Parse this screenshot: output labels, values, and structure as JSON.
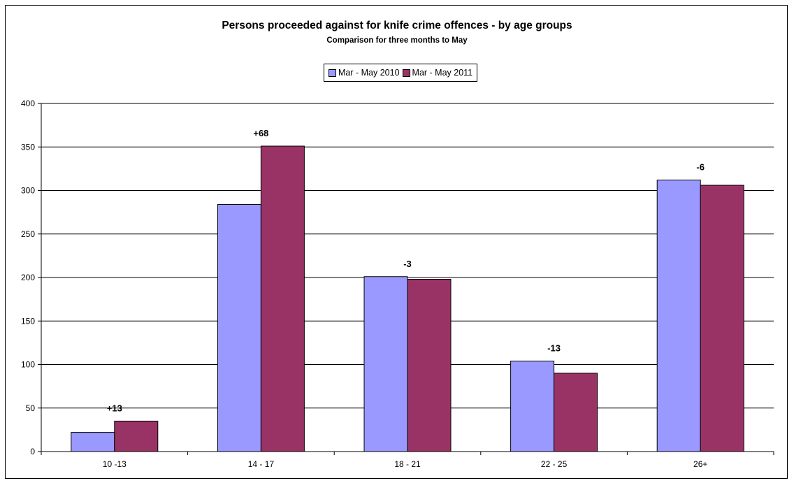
{
  "chart_data": {
    "type": "bar",
    "title": "Persons proceeded against for knife crime offences  - by age groups",
    "subtitle": "Comparison for three months to May",
    "xlabel": "",
    "ylabel": "",
    "categories": [
      "10 -13",
      "14 - 17",
      "18 - 21",
      "22 - 25",
      "26+"
    ],
    "series": [
      {
        "name": "Mar - May 2010",
        "values": [
          22,
          284,
          201,
          104,
          312
        ],
        "color": "#9999ff"
      },
      {
        "name": "Mar - May 2011",
        "values": [
          35,
          351,
          198,
          90,
          306
        ],
        "color": "#993366"
      }
    ],
    "annotations": [
      "+13",
      "+68",
      "-3",
      "-13",
      "-6"
    ],
    "ylim": [
      0,
      400
    ],
    "yticks": [
      0,
      50,
      100,
      150,
      200,
      250,
      300,
      350,
      400
    ],
    "grid": true,
    "legend_position": "top-center"
  }
}
